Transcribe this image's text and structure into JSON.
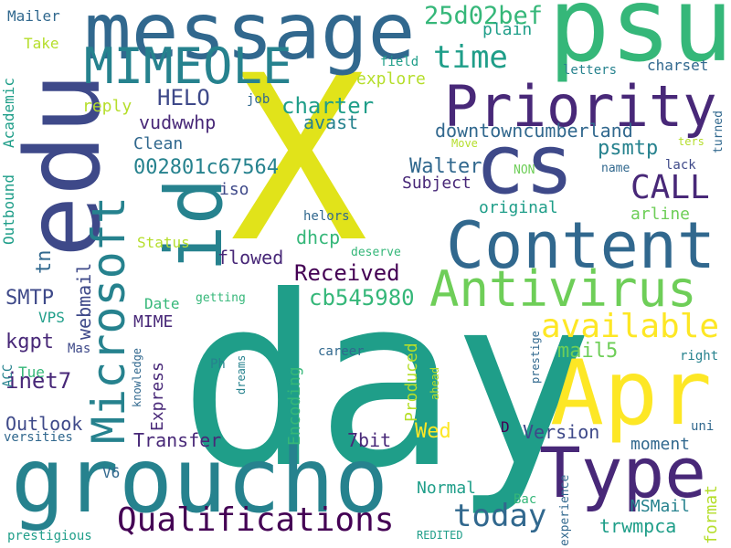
{
  "words": [
    "day",
    "X",
    "message",
    "psu",
    "edu",
    "groucho",
    "Content",
    "Microsoft",
    "Apr",
    "cs",
    "id",
    "Type",
    "Priority",
    "MIMEOLE",
    "Antivirus",
    "Qualifications",
    "available",
    "CALL",
    "today",
    "time",
    "25d02bef",
    "charter",
    "HELO",
    "avast",
    "vudwwhp",
    "Clean",
    "002801c67564",
    "psmtp",
    "downtowncumberland",
    "Walter",
    "Subject",
    "iso",
    "original",
    "dhcp",
    "Received",
    "flowed",
    "cb545980",
    "SMTP",
    "webmail",
    "MIME",
    "Date",
    "kgpt",
    "Mas",
    "inet7",
    "Outlook",
    "versities",
    "Express",
    "Transfer",
    "Encoding",
    "Produced",
    "Wed",
    "7bit",
    "D",
    "Version",
    "moment",
    "V6",
    "Normal",
    "MSMail",
    "trwmpca",
    "Bac",
    "format",
    "prestigious",
    "REDITED",
    "experience",
    "uni",
    "right",
    "prestige",
    "ahead",
    "career",
    "knowledge",
    "dreams",
    "Ph",
    "getting",
    "deserve",
    "helors",
    "Status",
    "arline",
    "tn",
    "Outbound",
    "Academic",
    "Mailer",
    "Take",
    "reply",
    "explore",
    "plain",
    "field",
    "letters",
    "charset",
    "job",
    "Move",
    "ters",
    "turned",
    "NON",
    "name",
    "lack",
    "mail5",
    "VPS",
    "ACC",
    "Tue"
  ]
}
